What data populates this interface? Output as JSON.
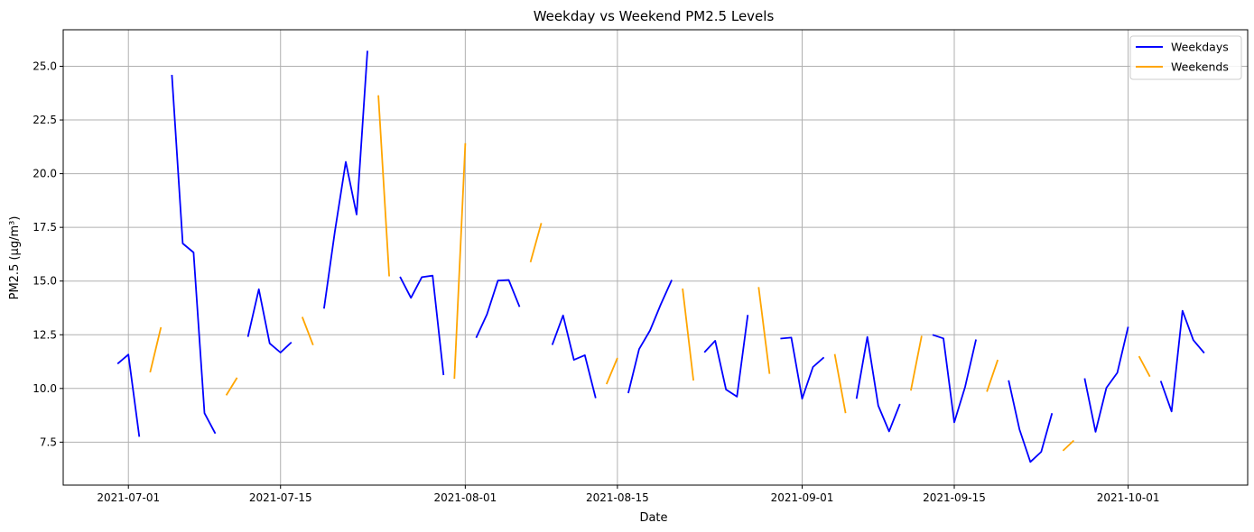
{
  "chart_data": {
    "type": "line",
    "title": "Weekday vs Weekend PM2.5 Levels",
    "xlabel": "Date",
    "ylabel": "PM2.5 (µg/m³)",
    "x_tick_labels": [
      "2021-07-01",
      "2021-07-15",
      "2021-08-01",
      "2021-08-15",
      "2021-09-01",
      "2021-09-15",
      "2021-10-01"
    ],
    "y_tick_labels": [
      "7.5",
      "10.0",
      "12.5",
      "15.0",
      "17.5",
      "20.0",
      "22.5",
      "25.0"
    ],
    "xlim": [
      "2021-06-25",
      "2021-10-12"
    ],
    "ylim": [
      5.5,
      26.7
    ],
    "grid": true,
    "legend_position": "top-right",
    "series": [
      {
        "name": "Weekdays",
        "color": "#0000ff",
        "segments": [
          [
            [
              "2021-06-30",
              11.15
            ],
            [
              "2021-07-01",
              11.58
            ],
            [
              "2021-07-02",
              7.75
            ]
          ],
          [
            [
              "2021-07-05",
              24.6
            ],
            [
              "2021-07-06",
              16.75
            ],
            [
              "2021-07-07",
              16.33
            ],
            [
              "2021-07-08",
              8.85
            ],
            [
              "2021-07-09",
              7.9
            ]
          ],
          [
            [
              "2021-07-12",
              12.4
            ],
            [
              "2021-07-13",
              14.62
            ],
            [
              "2021-07-14",
              12.1
            ],
            [
              "2021-07-15",
              11.67
            ],
            [
              "2021-07-16",
              12.15
            ]
          ],
          [
            [
              "2021-07-19",
              13.72
            ],
            [
              "2021-07-20",
              17.3
            ],
            [
              "2021-07-21",
              20.55
            ],
            [
              "2021-07-22",
              18.1
            ],
            [
              "2021-07-23",
              25.72
            ]
          ],
          [
            [
              "2021-07-26",
              15.2
            ],
            [
              "2021-07-27",
              14.22
            ],
            [
              "2021-07-28",
              15.18
            ],
            [
              "2021-07-29",
              15.25
            ],
            [
              "2021-07-30",
              10.62
            ]
          ],
          [
            [
              "2021-08-02",
              12.36
            ],
            [
              "2021-08-03",
              13.45
            ],
            [
              "2021-08-04",
              15.02
            ],
            [
              "2021-08-05",
              15.05
            ],
            [
              "2021-08-06",
              13.8
            ]
          ],
          [
            [
              "2021-08-09",
              12.03
            ],
            [
              "2021-08-10",
              13.4
            ],
            [
              "2021-08-11",
              11.33
            ],
            [
              "2021-08-12",
              11.55
            ],
            [
              "2021-08-13",
              9.55
            ]
          ],
          [
            [
              "2021-08-16",
              9.78
            ],
            [
              "2021-08-17",
              11.83
            ],
            [
              "2021-08-18",
              12.7
            ],
            [
              "2021-08-19",
              13.92
            ],
            [
              "2021-08-20",
              15.05
            ]
          ],
          [
            [
              "2021-08-23",
              11.68
            ],
            [
              "2021-08-24",
              12.22
            ],
            [
              "2021-08-25",
              9.95
            ],
            [
              "2021-08-26",
              9.62
            ],
            [
              "2021-08-27",
              13.42
            ]
          ],
          [
            [
              "2021-08-30",
              12.32
            ],
            [
              "2021-08-31",
              12.37
            ],
            [
              "2021-09-01",
              9.52
            ],
            [
              "2021-09-02",
              11.0
            ],
            [
              "2021-09-03",
              11.45
            ]
          ],
          [
            [
              "2021-09-06",
              9.52
            ],
            [
              "2021-09-07",
              12.4
            ],
            [
              "2021-09-08",
              9.2
            ],
            [
              "2021-09-09",
              8.0
            ],
            [
              "2021-09-10",
              9.28
            ]
          ],
          [
            [
              "2021-09-13",
              12.5
            ],
            [
              "2021-09-14",
              12.33
            ],
            [
              "2021-09-15",
              8.42
            ],
            [
              "2021-09-16",
              10.07
            ],
            [
              "2021-09-17",
              12.28
            ]
          ],
          [
            [
              "2021-09-20",
              10.38
            ],
            [
              "2021-09-21",
              8.1
            ],
            [
              "2021-09-22",
              6.58
            ],
            [
              "2021-09-23",
              7.05
            ],
            [
              "2021-09-24",
              8.85
            ]
          ],
          [
            [
              "2021-09-27",
              10.47
            ],
            [
              "2021-09-28",
              7.98
            ],
            [
              "2021-09-29",
              10.03
            ],
            [
              "2021-09-30",
              10.73
            ],
            [
              "2021-10-01",
              12.87
            ]
          ],
          [
            [
              "2021-10-04",
              10.35
            ],
            [
              "2021-10-05",
              8.93
            ],
            [
              "2021-10-06",
              13.62
            ],
            [
              "2021-10-07",
              12.25
            ],
            [
              "2021-10-08",
              11.65
            ]
          ]
        ]
      },
      {
        "name": "Weekends",
        "color": "#ffa500",
        "segments": [
          [
            [
              "2021-07-03",
              10.75
            ],
            [
              "2021-07-04",
              12.85
            ]
          ],
          [
            [
              "2021-07-10",
              9.68
            ],
            [
              "2021-07-11",
              10.5
            ]
          ],
          [
            [
              "2021-07-17",
              13.33
            ],
            [
              "2021-07-18",
              12.02
            ]
          ],
          [
            [
              "2021-07-24",
              23.65
            ],
            [
              "2021-07-25",
              15.22
            ]
          ],
          [
            [
              "2021-07-31",
              10.45
            ],
            [
              "2021-08-01",
              21.42
            ]
          ],
          [
            [
              "2021-08-07",
              15.88
            ],
            [
              "2021-08-08",
              17.7
            ]
          ],
          [
            [
              "2021-08-14",
              10.2
            ],
            [
              "2021-08-15",
              11.42
            ]
          ],
          [
            [
              "2021-08-21",
              14.65
            ],
            [
              "2021-08-22",
              10.37
            ]
          ],
          [
            [
              "2021-08-28",
              14.72
            ],
            [
              "2021-08-29",
              10.68
            ]
          ],
          [
            [
              "2021-09-04",
              11.6
            ],
            [
              "2021-09-05",
              8.85
            ]
          ],
          [
            [
              "2021-09-11",
              9.9
            ],
            [
              "2021-09-12",
              12.45
            ]
          ],
          [
            [
              "2021-09-18",
              9.85
            ],
            [
              "2021-09-19",
              11.33
            ]
          ],
          [
            [
              "2021-09-25",
              7.1
            ],
            [
              "2021-09-26",
              7.58
            ]
          ],
          [
            [
              "2021-10-02",
              11.5
            ],
            [
              "2021-10-03",
              10.55
            ]
          ]
        ]
      }
    ]
  }
}
